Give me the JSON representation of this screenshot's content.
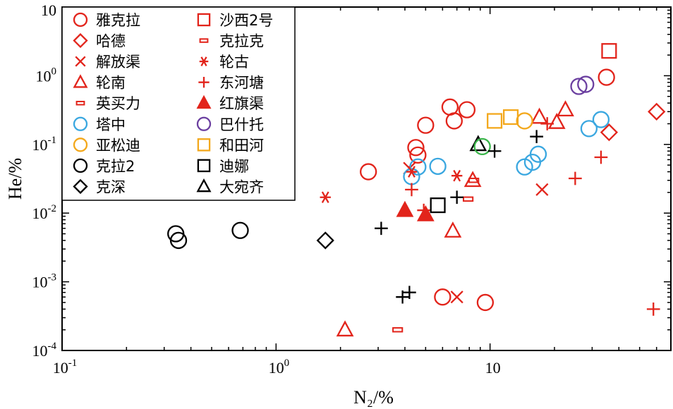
{
  "chart_data": {
    "type": "scatter",
    "xscale": "log",
    "yscale": "log",
    "xlim": [
      0.1,
      70
    ],
    "ylim": [
      0.0001,
      10
    ],
    "xlabel": "N₂/%",
    "ylabel": "He/%",
    "x_ticks": [
      {
        "value": 0.1,
        "mantissa": "10",
        "exp": "-1"
      },
      {
        "value": 1,
        "mantissa": "10",
        "exp": "0"
      },
      {
        "value": 10,
        "mantissa": "10",
        "exp": ""
      }
    ],
    "y_ticks": [
      {
        "value": 0.0001,
        "mantissa": "10",
        "exp": "-4"
      },
      {
        "value": 0.001,
        "mantissa": "10",
        "exp": "-3"
      },
      {
        "value": 0.01,
        "mantissa": "10",
        "exp": "-2"
      },
      {
        "value": 0.1,
        "mantissa": "10",
        "exp": "-1"
      },
      {
        "value": 1,
        "mantissa": "10",
        "exp": "0"
      },
      {
        "value": 10,
        "mantissa": "10",
        "exp": ""
      }
    ],
    "legend_position": "top-left",
    "series": [
      {
        "name": "雅克拉",
        "marker": "circle",
        "color": "#e2241b",
        "points": [
          [
            2.7,
            0.04
          ],
          [
            4.5,
            0.09
          ],
          [
            4.6,
            0.07
          ],
          [
            5.0,
            0.19
          ],
          [
            6.5,
            0.35
          ],
          [
            6.8,
            0.22
          ],
          [
            7.8,
            0.32
          ],
          [
            35,
            0.95
          ],
          [
            6.0,
            0.0006
          ],
          [
            9.5,
            0.0005
          ]
        ]
      },
      {
        "name": "哈德",
        "marker": "diamond",
        "color": "#e2241b",
        "points": [
          [
            36,
            0.15
          ],
          [
            60,
            0.3
          ]
        ]
      },
      {
        "name": "解放渠",
        "marker": "x",
        "color": "#e2241b",
        "points": [
          [
            4.2,
            0.045
          ],
          [
            7.0,
            0.0006
          ],
          [
            17.5,
            0.022
          ]
        ]
      },
      {
        "name": "轮南",
        "marker": "triangle",
        "color": "#e2241b",
        "points": [
          [
            6.7,
            0.0055
          ],
          [
            8.3,
            0.03
          ],
          [
            17,
            0.25
          ],
          [
            20.5,
            0.21
          ],
          [
            22.5,
            0.32
          ],
          [
            2.1,
            0.0002
          ]
        ]
      },
      {
        "name": "英买力",
        "marker": "dash",
        "color": "#e2241b",
        "points": [
          [
            3.7,
            0.0002
          ],
          [
            7.9,
            0.016
          ],
          [
            8.4,
            0.03
          ]
        ]
      },
      {
        "name": "塔中",
        "marker": "circle",
        "color": "#3aa7e0",
        "points": [
          [
            4.3,
            0.034
          ],
          [
            4.6,
            0.047
          ],
          [
            5.7,
            0.048
          ],
          [
            14.5,
            0.047
          ],
          [
            15.8,
            0.055
          ],
          [
            16.8,
            0.072
          ],
          [
            29,
            0.17
          ],
          [
            33,
            0.23
          ]
        ]
      },
      {
        "name": "亚松迪",
        "marker": "circle",
        "color": "#f3a81c",
        "points": [
          [
            14.5,
            0.22
          ]
        ]
      },
      {
        "name": "克拉2",
        "marker": "circle",
        "color": "#000000",
        "points": [
          [
            0.34,
            0.005
          ],
          [
            0.35,
            0.004
          ],
          [
            0.68,
            0.0056
          ]
        ]
      },
      {
        "name": "克深",
        "marker": "diamond",
        "color": "#000000",
        "points": [
          [
            1.7,
            0.004
          ]
        ]
      },
      {
        "name": "沙西2号",
        "marker": "square",
        "color": "#e2241b",
        "points": [
          [
            36,
            2.3
          ]
        ]
      },
      {
        "name": "克拉克",
        "marker": "dash",
        "color": "#e2241b",
        "points": []
      },
      {
        "name": "轮古",
        "marker": "asterisk",
        "color": "#e2241b",
        "points": [
          [
            1.7,
            0.017
          ],
          [
            4.3,
            0.04
          ],
          [
            7.0,
            0.035
          ]
        ]
      },
      {
        "name": "东河塘",
        "marker": "plus",
        "color": "#e2241b",
        "points": [
          [
            4.3,
            0.022
          ],
          [
            4.9,
            0.011
          ],
          [
            18.5,
            0.2
          ],
          [
            25,
            0.032
          ],
          [
            33,
            0.065
          ],
          [
            58,
            0.0004
          ]
        ]
      },
      {
        "name": "红旗渠",
        "marker": "filled-triangle",
        "color": "#e2241b",
        "points": [
          [
            4.0,
            0.011
          ],
          [
            5.0,
            0.0095
          ]
        ]
      },
      {
        "name": "巴什托",
        "marker": "circle",
        "color": "#6b3fa0",
        "points": [
          [
            26,
            0.7
          ],
          [
            28,
            0.75
          ]
        ]
      },
      {
        "name": "和田河",
        "marker": "square",
        "color": "#f3a81c",
        "points": [
          [
            10.5,
            0.22
          ],
          [
            12.5,
            0.25
          ]
        ]
      },
      {
        "name": "迪娜",
        "marker": "square",
        "color": "#000000",
        "points": [
          [
            5.7,
            0.013
          ]
        ]
      },
      {
        "name": "大宛齐",
        "marker": "triangle",
        "color": "#000000",
        "points": [
          [
            8.8,
            0.1
          ]
        ]
      },
      {
        "name": "",
        "marker": "circle",
        "color": "#3ab54a",
        "points": [
          [
            9.2,
            0.093
          ]
        ]
      },
      {
        "name": "",
        "marker": "plus",
        "color": "#000000",
        "points": [
          [
            3.1,
            0.006
          ],
          [
            3.9,
            0.0006
          ],
          [
            4.2,
            0.0007
          ],
          [
            7.0,
            0.017
          ],
          [
            10.5,
            0.08
          ],
          [
            16.5,
            0.13
          ]
        ]
      }
    ]
  }
}
